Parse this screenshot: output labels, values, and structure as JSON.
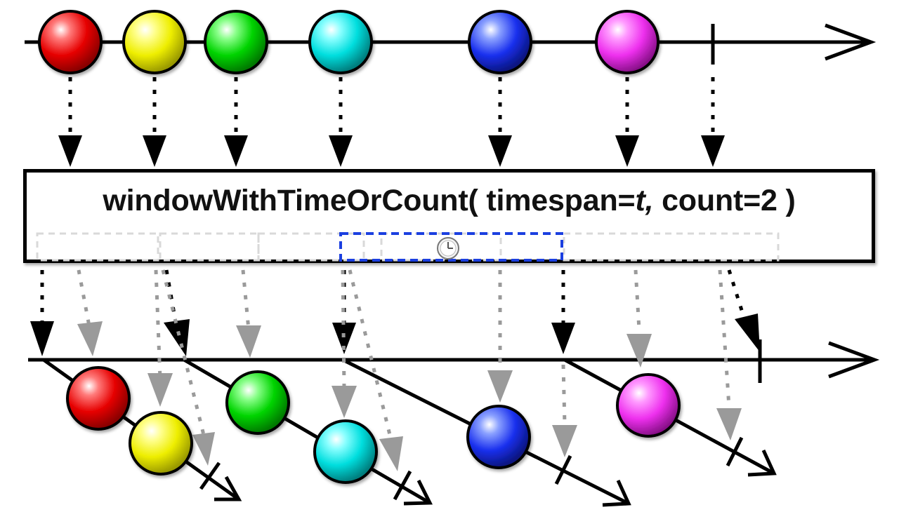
{
  "operator": {
    "name": "windowWithTimeOrCount(",
    "param1": " timespan=",
    "param1_value": "t,",
    "param2": " count=2 )"
  },
  "colors": {
    "red": "#ee0000",
    "yellow": "#f2f200",
    "green": "#00dd00",
    "cyan": "#00e5e5",
    "blue": "#1d35f0",
    "magenta": "#f03cf0",
    "window_highlight": "#1b3fe0",
    "window_faint": "#d9d9d9",
    "inner_arrow": "#9a9a9a"
  },
  "icons": {
    "clock": "clock-icon"
  }
}
